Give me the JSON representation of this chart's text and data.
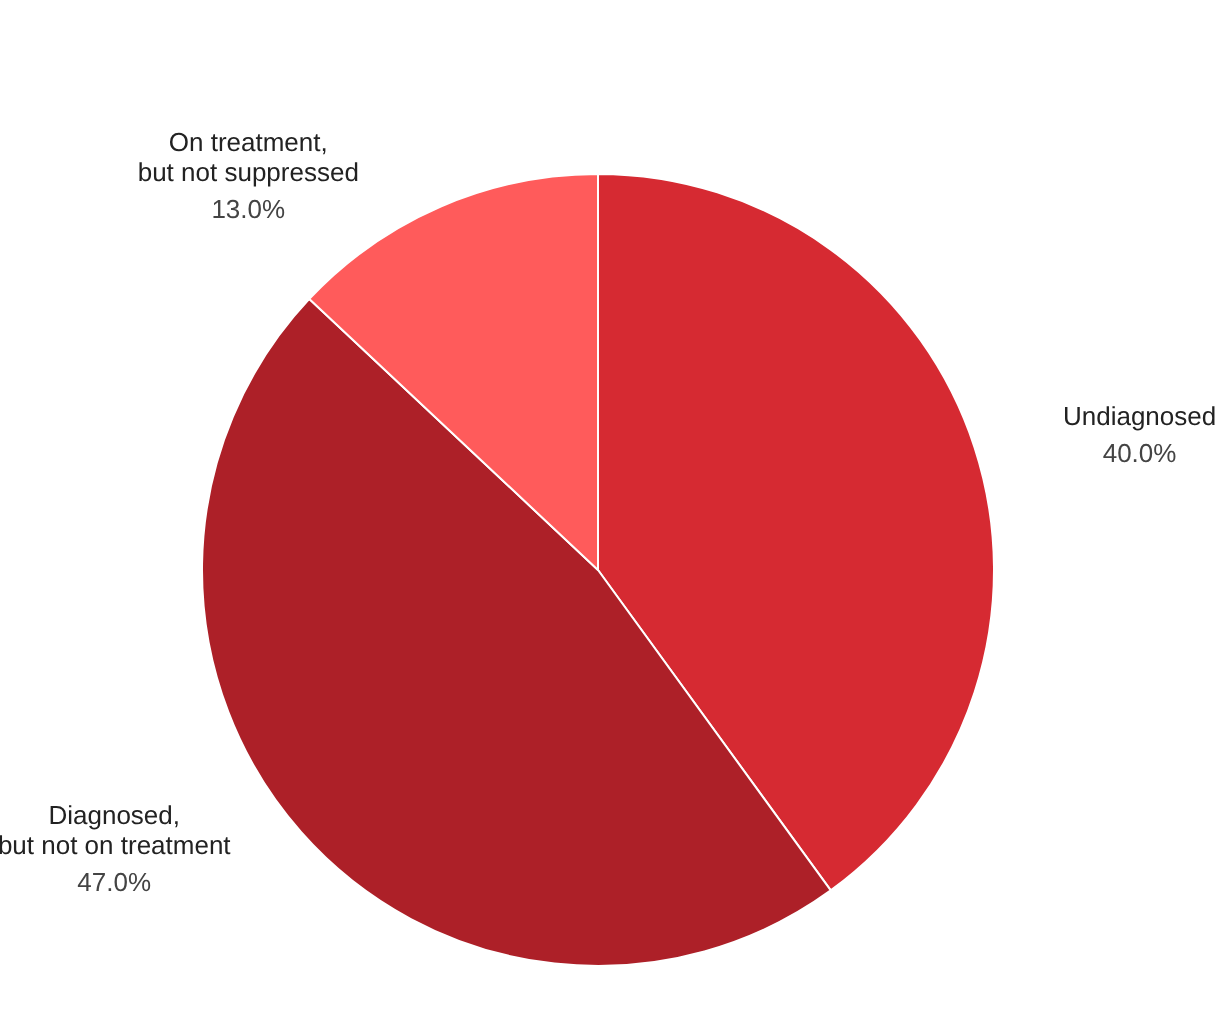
{
  "chart_data": {
    "type": "pie",
    "categories": [
      "Undiagnosed",
      "Diagnosed,\nbut not on treatment",
      "On treatment,\nbut not suppressed"
    ],
    "values": [
      40,
      47,
      13
    ],
    "value_labels": [
      "40.0%",
      "47.0%",
      "13.0%"
    ],
    "colors": [
      "#d62a32",
      "#ad2028",
      "#ff5b5b"
    ],
    "legend": false
  }
}
